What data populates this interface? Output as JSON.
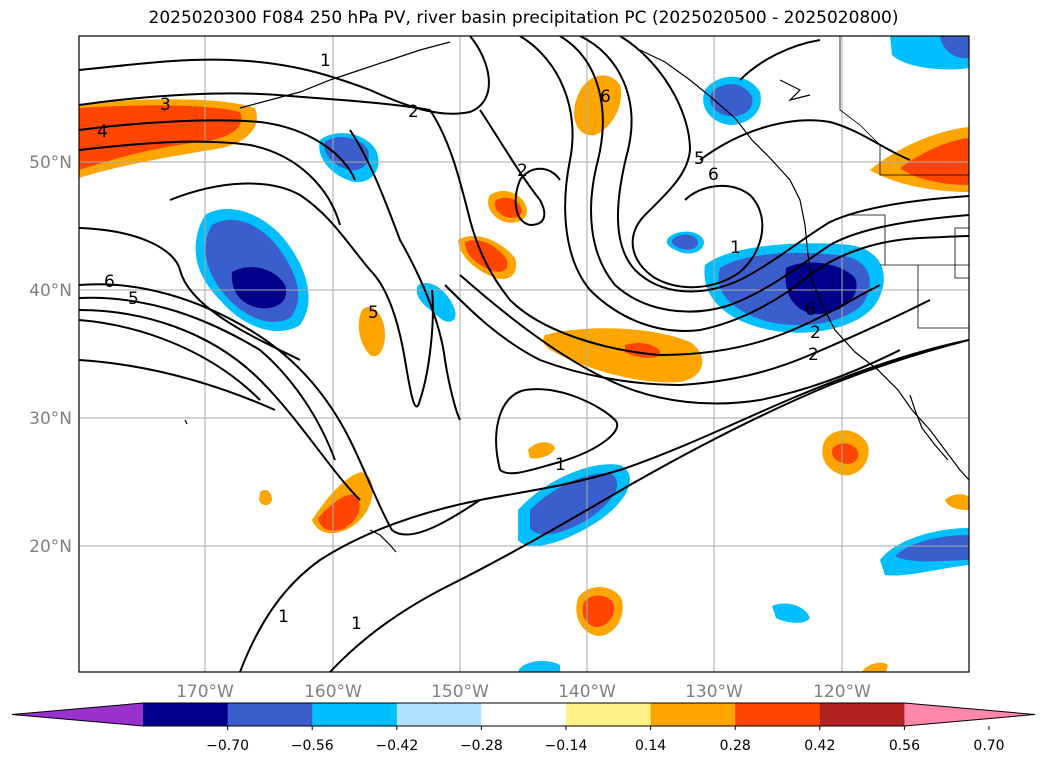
{
  "title": "2025020300 F084 250 hPa PV, river basin precipitation PC (2025020500 - 2025020800)",
  "lat_labels": [
    "50°N",
    "40°N",
    "30°N",
    "20°N"
  ],
  "lon_labels": [
    "170°W",
    "160°W",
    "150°W",
    "140°W",
    "130°W",
    "120°W"
  ],
  "colorbar": {
    "ticks": [
      "−0.70",
      "−0.56",
      "−0.42",
      "−0.28",
      "−0.14",
      "0.14",
      "0.28",
      "0.42",
      "0.56",
      "0.70"
    ],
    "colors": [
      "#9932cc",
      "#00008b",
      "#3a5fcd",
      "#00bfff",
      "#b0e2ff",
      "#ffffff",
      "#fff08a",
      "#ffa500",
      "#ff4500",
      "#b22222",
      "#ff88aa"
    ]
  },
  "contour_labels": [
    "1",
    "2",
    "3",
    "4",
    "5",
    "6",
    "2",
    "6",
    "5",
    "6",
    "1",
    "2",
    "2",
    "1",
    "1",
    "1",
    "6",
    "5"
  ]
}
